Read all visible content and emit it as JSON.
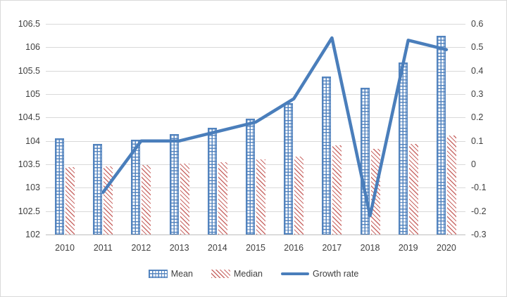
{
  "chart_data": {
    "type": "bar",
    "title": "",
    "categories": [
      "2010",
      "2011",
      "2012",
      "2013",
      "2014",
      "2015",
      "2016",
      "2017",
      "2018",
      "2019",
      "2020"
    ],
    "series": [
      {
        "name": "Mean",
        "kind": "bar",
        "axis": "left",
        "pattern": "grid",
        "color": "#4f81bd",
        "values": [
          104.05,
          103.93,
          104.02,
          104.15,
          104.28,
          104.47,
          104.8,
          105.38,
          105.13,
          105.67,
          106.25
        ]
      },
      {
        "name": "Median",
        "kind": "bar",
        "axis": "left",
        "pattern": "diagonal",
        "color": "#c0504d",
        "values": [
          103.44,
          103.45,
          103.48,
          103.52,
          103.55,
          103.61,
          103.67,
          103.9,
          103.83,
          103.93,
          104.12
        ]
      },
      {
        "name": "Growth rate",
        "kind": "line",
        "axis": "right",
        "color": "#4a7ebb",
        "values": [
          null,
          -0.12,
          0.1,
          0.1,
          0.14,
          0.18,
          0.28,
          0.54,
          -0.22,
          0.53,
          0.49
        ]
      }
    ],
    "left_axis": {
      "min": 102,
      "max": 106.5,
      "step": 0.5,
      "ticks": [
        "106.5",
        "106",
        "105.5",
        "105",
        "104.5",
        "104",
        "103.5",
        "103",
        "102.5",
        "102"
      ]
    },
    "right_axis": {
      "min": -0.3,
      "max": 0.6,
      "step": 0.1,
      "ticks": [
        "0.6",
        "0.5",
        "0.4",
        "0.3",
        "0.2",
        "0.1",
        "0",
        "-0.1",
        "-0.2",
        "-0.3"
      ]
    },
    "grid": true,
    "legend": {
      "position": "bottom",
      "entries": [
        "Mean",
        "Median",
        "Growth rate"
      ]
    }
  },
  "colors": {
    "bar_blue": "#4f81bd",
    "bar_red": "#c0504d",
    "line_blue": "#4a7ebb",
    "gridline": "#d9d9d9",
    "axis_line": "#bfbfbf",
    "text": "#404040",
    "border": "#d9d9d9",
    "background": "#ffffff"
  }
}
